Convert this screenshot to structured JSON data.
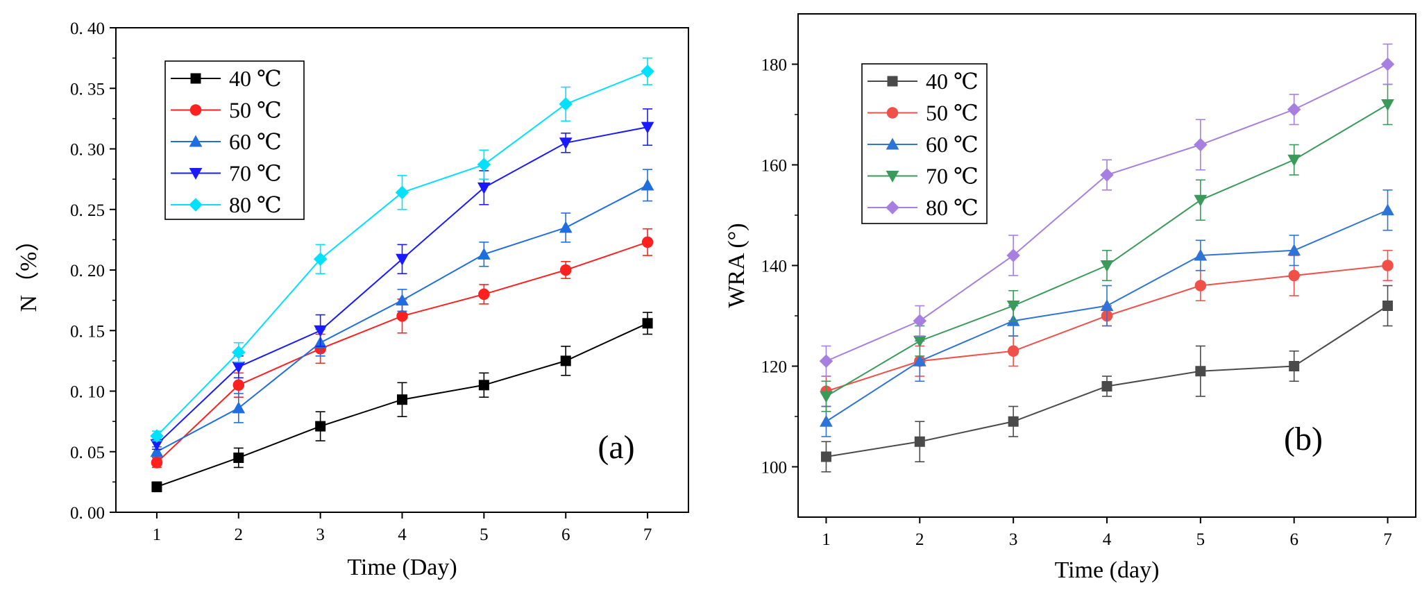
{
  "chart_data": [
    {
      "type": "line",
      "panel_label": "(a)",
      "xlabel": "Time (Day)",
      "ylabel": "N（%）",
      "x": [
        1,
        2,
        3,
        4,
        5,
        6,
        7
      ],
      "x_tick_labels": [
        "1",
        "2",
        "3",
        "4",
        "5",
        "6",
        "7"
      ],
      "xlim": [
        0.5,
        7.5
      ],
      "ylim": [
        0,
        0.4
      ],
      "y_ticks": [
        0,
        0.05,
        0.1,
        0.15,
        0.2,
        0.25,
        0.3,
        0.35,
        0.4
      ],
      "y_tick_labels": [
        "0. 00",
        "0. 05",
        "0. 10",
        "0. 15",
        "0. 20",
        "0. 25",
        "0. 30",
        "0. 35",
        "0. 40"
      ],
      "grid": false,
      "legend_position": "top-left",
      "series": [
        {
          "name": "40 ℃",
          "color": "#000000",
          "marker": "square",
          "values": [
            0.021,
            0.045,
            0.071,
            0.093,
            0.105,
            0.125,
            0.156
          ],
          "errors": [
            0.004,
            0.008,
            0.012,
            0.014,
            0.01,
            0.012,
            0.009
          ]
        },
        {
          "name": "50 ℃",
          "color": "#ff2020",
          "marker": "circle",
          "values": [
            0.041,
            0.105,
            0.135,
            0.162,
            0.18,
            0.2,
            0.223
          ],
          "errors": [
            0.004,
            0.01,
            0.012,
            0.014,
            0.008,
            0.007,
            0.011
          ]
        },
        {
          "name": "60 ℃",
          "color": "#1e6ee0",
          "marker": "triangle-up",
          "values": [
            0.05,
            0.086,
            0.14,
            0.175,
            0.213,
            0.235,
            0.27
          ],
          "errors": [
            0.004,
            0.012,
            0.011,
            0.009,
            0.01,
            0.012,
            0.013
          ]
        },
        {
          "name": "70 ℃",
          "color": "#1a1aff",
          "marker": "triangle-down",
          "values": [
            0.056,
            0.12,
            0.15,
            0.209,
            0.268,
            0.305,
            0.318
          ],
          "errors": [
            0.004,
            0.009,
            0.013,
            0.012,
            0.014,
            0.008,
            0.015
          ]
        },
        {
          "name": "80 ℃",
          "color": "#00e0ff",
          "marker": "diamond",
          "values": [
            0.063,
            0.132,
            0.209,
            0.264,
            0.287,
            0.337,
            0.364
          ],
          "errors": [
            0.004,
            0.008,
            0.012,
            0.014,
            0.012,
            0.014,
            0.011
          ]
        }
      ]
    },
    {
      "type": "line",
      "panel_label": "(b)",
      "xlabel": "Time (day)",
      "ylabel": "WRA (°)",
      "x": [
        1,
        2,
        3,
        4,
        5,
        6,
        7
      ],
      "x_tick_labels": [
        "1",
        "2",
        "3",
        "4",
        "5",
        "6",
        "7"
      ],
      "xlim": [
        0.7,
        7.3
      ],
      "ylim": [
        90,
        190
      ],
      "y_ticks": [
        100,
        120,
        140,
        160,
        180
      ],
      "y_tick_labels": [
        "100",
        "120",
        "140",
        "160",
        "180"
      ],
      "grid": false,
      "legend_position": "top-left",
      "series": [
        {
          "name": "40 ℃",
          "color": "#4a4a4a",
          "marker": "square",
          "values": [
            102,
            105,
            109,
            116,
            119,
            120,
            132
          ],
          "errors": [
            3,
            4,
            3,
            2,
            5,
            3,
            4
          ]
        },
        {
          "name": "50 ℃",
          "color": "#f0504a",
          "marker": "circle",
          "values": [
            115,
            121,
            123,
            130,
            136,
            138,
            140
          ],
          "errors": [
            3,
            3,
            3,
            2,
            3,
            4,
            3
          ]
        },
        {
          "name": "60 ℃",
          "color": "#2e73d6",
          "marker": "triangle-up",
          "values": [
            109,
            121,
            129,
            132,
            142,
            143,
            151
          ],
          "errors": [
            3,
            4,
            3,
            4,
            3,
            3,
            4
          ]
        },
        {
          "name": "70 ℃",
          "color": "#3a9a5a",
          "marker": "triangle-down",
          "values": [
            114,
            125,
            132,
            140,
            153,
            161,
            172
          ],
          "errors": [
            3,
            3,
            3,
            3,
            4,
            3,
            4
          ]
        },
        {
          "name": "80 ℃",
          "color": "#a77fe0",
          "marker": "diamond",
          "values": [
            121,
            129,
            142,
            158,
            164,
            171,
            180
          ],
          "errors": [
            3,
            3,
            4,
            3,
            5,
            3,
            4
          ]
        }
      ]
    }
  ]
}
